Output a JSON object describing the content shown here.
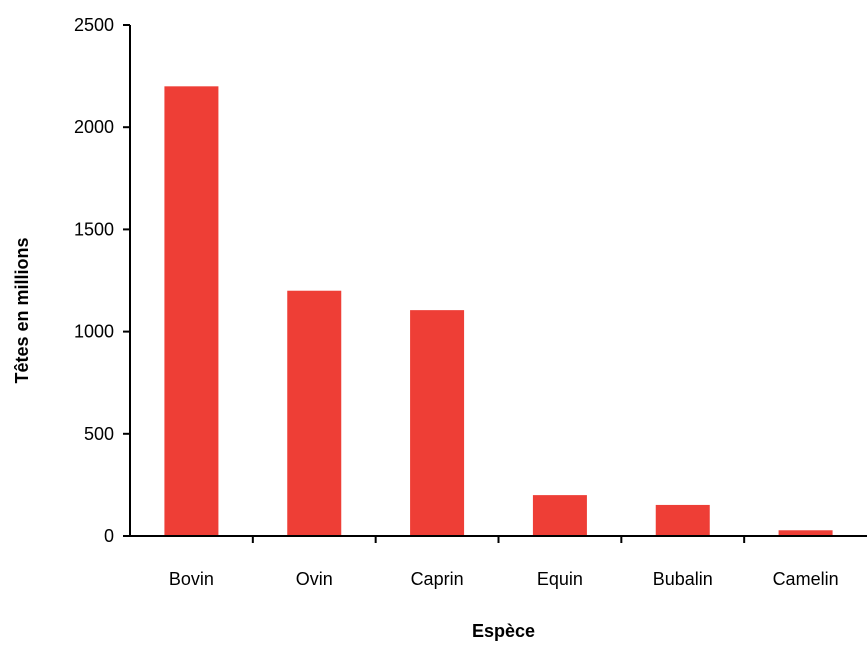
{
  "chart_data": {
    "type": "bar",
    "title": "",
    "xlabel": "Espèce",
    "ylabel": "Têtes en millions",
    "categories": [
      "Bovin",
      "Ovin",
      "Caprin",
      "Equin",
      "Bubalin",
      "Camelin"
    ],
    "values": [
      2200,
      1200,
      1105,
      200,
      152,
      28
    ],
    "ylim": [
      0,
      2500
    ],
    "yticks": [
      0,
      500,
      1000,
      1500,
      2000,
      2500
    ],
    "grid": false,
    "legend": "none",
    "colors": {
      "bar": "#ee3e36",
      "axis": "#000000"
    }
  }
}
